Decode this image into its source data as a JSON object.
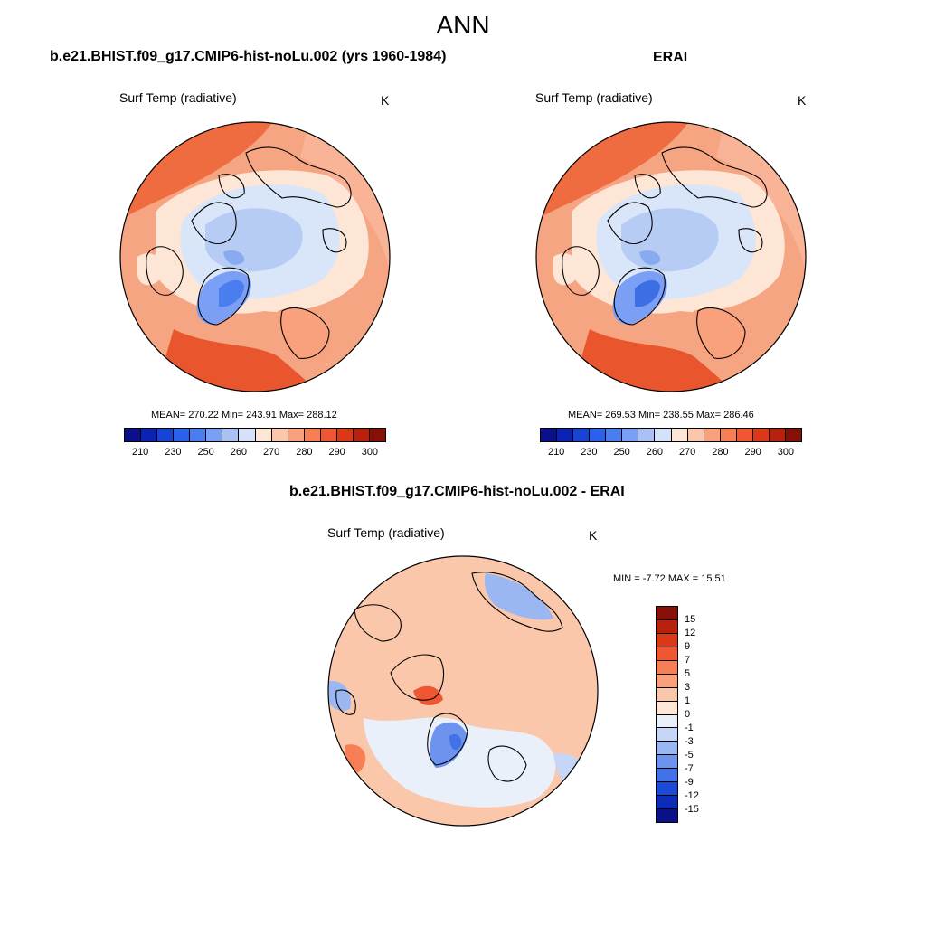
{
  "title": "ANN",
  "panels": [
    {
      "id": "model",
      "title": "b.e21.BHIST.f09_g17.CMIP6-hist-noLu.002 (yrs 1960-1984)",
      "field": "Surf Temp (radiative)",
      "units": "K",
      "stats": {
        "mean": "270.22",
        "min": "243.91",
        "max": "288.12",
        "text": "MEAN= 270.22  Min= 243.91  Max= 288.12"
      }
    },
    {
      "id": "obs",
      "title": "ERAI",
      "field": "Surf Temp (radiative)",
      "units": "K",
      "stats": {
        "mean": "269.53",
        "min": "238.55",
        "max": "286.46",
        "text": "MEAN= 269.53  Min= 238.55  Max= 286.46"
      }
    },
    {
      "id": "diff",
      "title": "b.e21.BHIST.f09_g17.CMIP6-hist-noLu.002 - ERAI",
      "field": "Surf Temp (radiative)",
      "units": "K",
      "stats": {
        "min": "-7.72",
        "max": "15.51",
        "text": "MIN =  -7.72 MAX =  15.51"
      }
    }
  ],
  "colorbar_abs": {
    "labels": [
      "210",
      "230",
      "250",
      "260",
      "270",
      "280",
      "290",
      "300"
    ],
    "colors": [
      "#0a0f8a",
      "#0b22b4",
      "#1744d4",
      "#2a61ea",
      "#4a7df0",
      "#7b9ff4",
      "#aac1f6",
      "#d4e1f8",
      "#fde6d6",
      "#fbc7aa",
      "#f9a07c",
      "#f77e55",
      "#ef5632",
      "#db3817",
      "#b8210c",
      "#861008"
    ]
  },
  "colorbar_diff": {
    "labels": [
      "15",
      "12",
      "9",
      "7",
      "5",
      "3",
      "1",
      "0",
      "-1",
      "-3",
      "-5",
      "-7",
      "-9",
      "-12",
      "-15"
    ],
    "colors": [
      "#861008",
      "#b8210c",
      "#db3817",
      "#ef5632",
      "#f77e55",
      "#f9a07c",
      "#fbc7aa",
      "#fde6d6",
      "#eaf0fa",
      "#c5d6f7",
      "#9bb7f2",
      "#6e93ee",
      "#4271e8",
      "#1c4bd8",
      "#0c2cb8",
      "#0a0f8a"
    ]
  },
  "map_palette": {
    "land_warm": "#f4a588",
    "ocean_warm": "#f7b597",
    "hot": "#ef6a3f",
    "cool_light": "#dbe6f8",
    "cool_mid": "#b9cdf5",
    "cool_dark": "#88aaf0",
    "ice_core": "#4d7ee8",
    "neutral": "#fde9dc"
  }
}
